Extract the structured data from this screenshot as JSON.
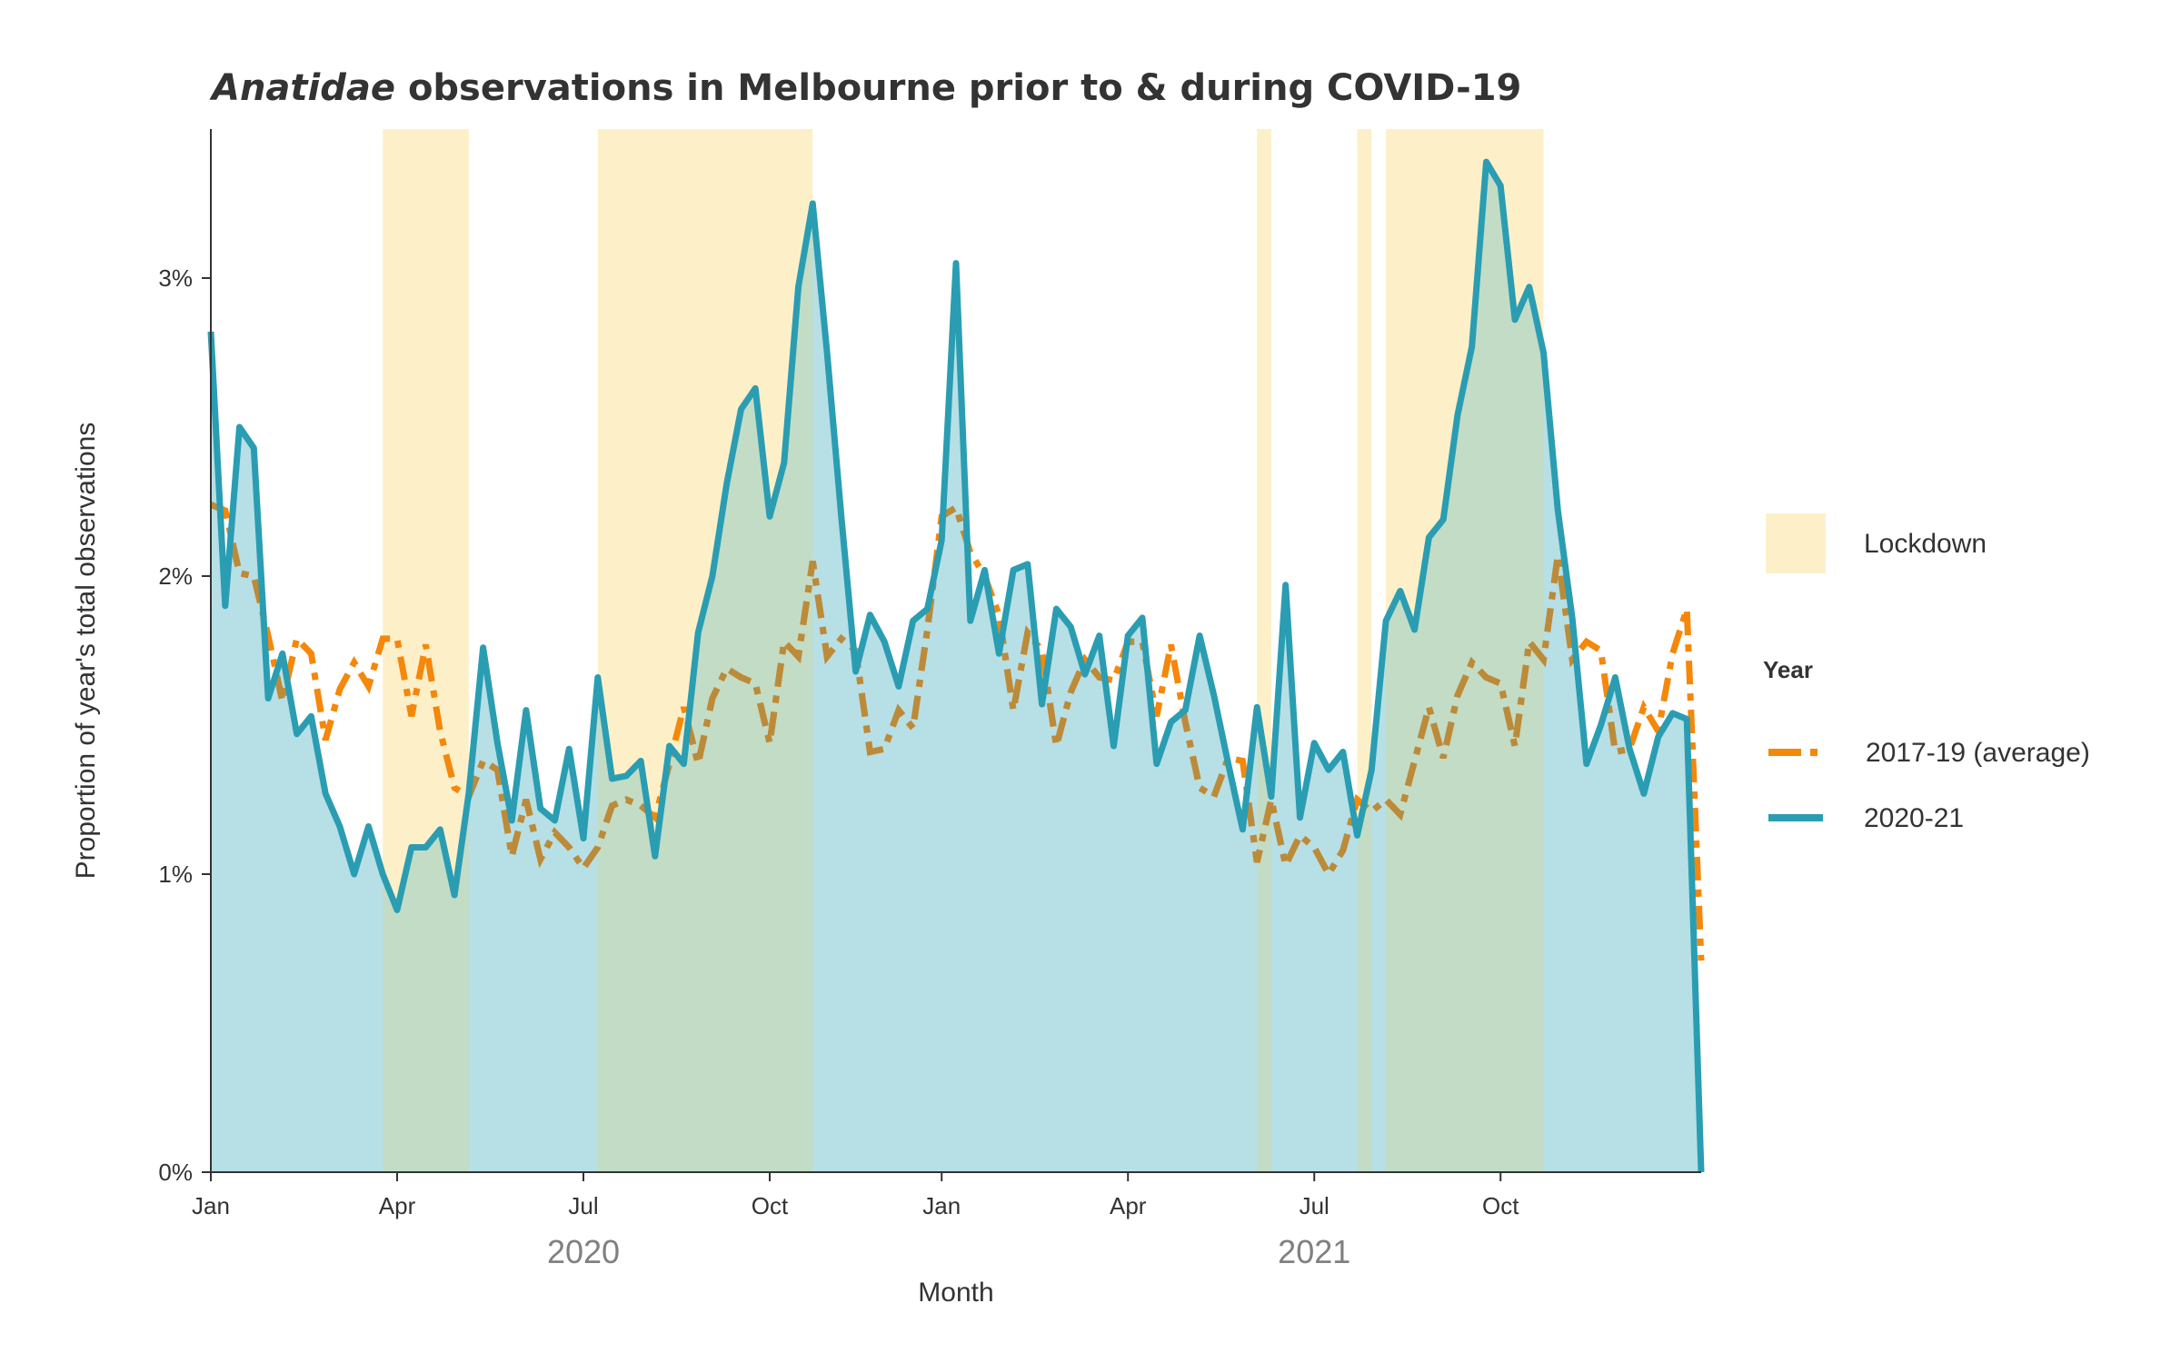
{
  "chart_data": {
    "type": "line",
    "title_italic": "Anatidae",
    "title_rest": " observations in Melbourne prior to & during COVID-19",
    "xlabel": "Month",
    "ylabel": "Proportion of year's total observations",
    "ylim": [
      0,
      3.5
    ],
    "y_ticks": [
      0,
      1,
      2,
      3
    ],
    "y_tick_labels": [
      "0%",
      "1%",
      "2%",
      "3%"
    ],
    "x_ticks": [
      {
        "week": 0,
        "label": "Jan"
      },
      {
        "week": 13,
        "label": "Apr"
      },
      {
        "week": 26,
        "label": "Jul"
      },
      {
        "week": 39,
        "label": "Oct"
      },
      {
        "week": 51,
        "label": "Jan"
      },
      {
        "week": 64,
        "label": "Apr"
      },
      {
        "week": 77,
        "label": "Jul"
      },
      {
        "week": 90,
        "label": "Oct"
      }
    ],
    "year_labels": [
      {
        "week": 26,
        "label": "2020"
      },
      {
        "week": 77,
        "label": "2021"
      }
    ],
    "x_range": [
      0,
      104
    ],
    "lockdowns": [
      [
        12,
        18
      ],
      [
        27,
        42
      ],
      [
        73,
        74
      ],
      [
        80,
        81
      ],
      [
        82,
        93
      ]
    ],
    "legend": {
      "lockdown_label": "Lockdown",
      "year_title": "Year",
      "entries": [
        {
          "name": "2017-19 (average)",
          "color": "#f5870a",
          "dash": true
        },
        {
          "name": "2020-21",
          "color": "#2a9db2",
          "dash": false
        }
      ]
    },
    "colors": {
      "lockdown": "#fdf0c9",
      "fill": "#b7dfe6",
      "current": "#2a9db2",
      "average": "#f5870a",
      "average_overlap": "#bb8b3a"
    },
    "series": [
      {
        "name": "2020-21",
        "values": [
          2.82,
          1.9,
          2.5,
          2.43,
          1.59,
          1.74,
          1.47,
          1.53,
          1.27,
          1.16,
          1.0,
          1.16,
          1.0,
          0.88,
          1.09,
          1.09,
          1.15,
          0.93,
          1.27,
          1.76,
          1.44,
          1.18,
          1.55,
          1.22,
          1.18,
          1.42,
          1.12,
          1.66,
          1.32,
          1.33,
          1.38,
          1.06,
          1.43,
          1.37,
          1.81,
          2.0,
          2.31,
          2.56,
          2.63,
          2.2,
          2.38,
          2.97,
          3.25,
          2.75,
          2.2,
          1.68,
          1.87,
          1.78,
          1.63,
          1.85,
          1.89,
          2.12,
          3.05,
          1.85,
          2.02,
          1.74,
          2.02,
          2.04,
          1.57,
          1.89,
          1.83,
          1.67,
          1.8,
          1.43,
          1.8,
          1.86,
          1.37,
          1.51,
          1.55,
          1.8,
          1.6,
          1.37,
          1.15,
          1.56,
          1.26,
          1.97,
          1.19,
          1.44,
          1.35,
          1.41,
          1.13,
          1.35,
          1.85,
          1.95,
          1.82,
          2.13,
          2.19,
          2.54,
          2.77,
          3.39,
          3.31,
          2.86,
          2.97,
          2.75,
          2.22,
          1.86,
          1.37,
          1.5,
          1.66,
          1.42,
          1.27,
          1.46,
          1.54,
          1.52,
          0.0
        ]
      },
      {
        "name": "2017-19 (average)",
        "values": [
          2.24,
          2.22,
          2.01,
          2.0,
          1.8,
          1.58,
          1.79,
          1.74,
          1.45,
          1.62,
          1.71,
          1.63,
          1.79,
          1.79,
          1.53,
          1.77,
          1.48,
          1.29,
          1.26,
          1.38,
          1.35,
          1.06,
          1.25,
          1.05,
          1.14,
          1.09,
          1.02,
          1.09,
          1.23,
          1.25,
          1.23,
          1.19,
          1.37,
          1.56,
          1.37,
          1.59,
          1.69,
          1.66,
          1.64,
          1.44,
          1.78,
          1.73,
          2.05,
          1.73,
          1.79,
          1.75,
          1.41,
          1.42,
          1.55,
          1.49,
          1.82,
          2.2,
          2.23,
          2.08,
          2.0,
          1.87,
          1.55,
          1.81,
          1.75,
          1.43,
          1.61,
          1.72,
          1.66,
          1.65,
          1.78,
          1.78,
          1.53,
          1.77,
          1.51,
          1.29,
          1.26,
          1.39,
          1.38,
          1.04,
          1.25,
          1.03,
          1.13,
          1.09,
          1.0,
          1.08,
          1.25,
          1.21,
          1.25,
          1.2,
          1.38,
          1.56,
          1.39,
          1.6,
          1.71,
          1.66,
          1.64,
          1.43,
          1.78,
          1.72,
          2.07,
          1.72,
          1.78,
          1.75,
          1.41,
          1.42,
          1.56,
          1.48,
          1.74,
          1.89,
          0.71
        ]
      }
    ]
  }
}
